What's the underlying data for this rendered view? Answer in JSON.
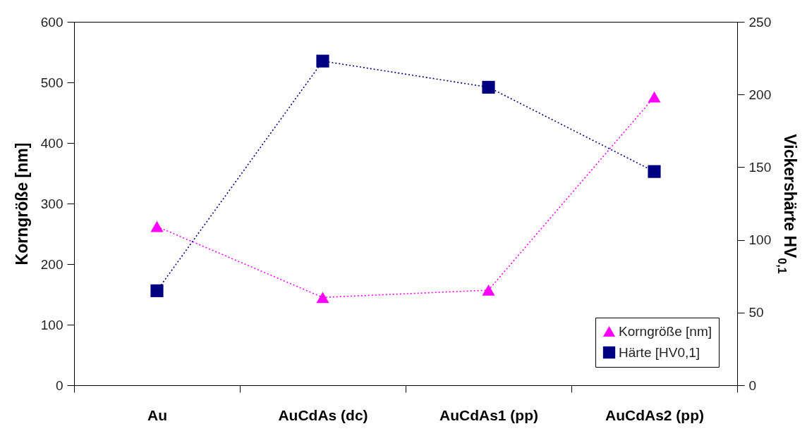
{
  "chart_data": {
    "type": "line",
    "categories": [
      "Au",
      "AuCdAs (dc)",
      "AuCdAs1 (pp)",
      "AuCdAs2 (pp)"
    ],
    "ylabel": "Korngröße [nm]",
    "y2label": "Vickershärte HV$_{0,1}$",
    "ylim": [
      0,
      600
    ],
    "yticks": [
      0,
      100,
      200,
      300,
      400,
      500,
      600
    ],
    "y2lim": [
      0,
      250
    ],
    "y2ticks": [
      0,
      50,
      100,
      150,
      200,
      250
    ],
    "series": [
      {
        "name": "Korngröße [nm]",
        "color": "#ff00ff",
        "marker": "triangle",
        "values": [
          262,
          145,
          157,
          476
        ]
      },
      {
        "name": "Härte [HV0,1]",
        "color": "#000080",
        "marker": "square",
        "axis": "y2",
        "values": [
          65,
          223,
          205,
          147
        ]
      }
    ],
    "line_style": "dotted",
    "legend": "bottom right",
    "grid": false
  }
}
